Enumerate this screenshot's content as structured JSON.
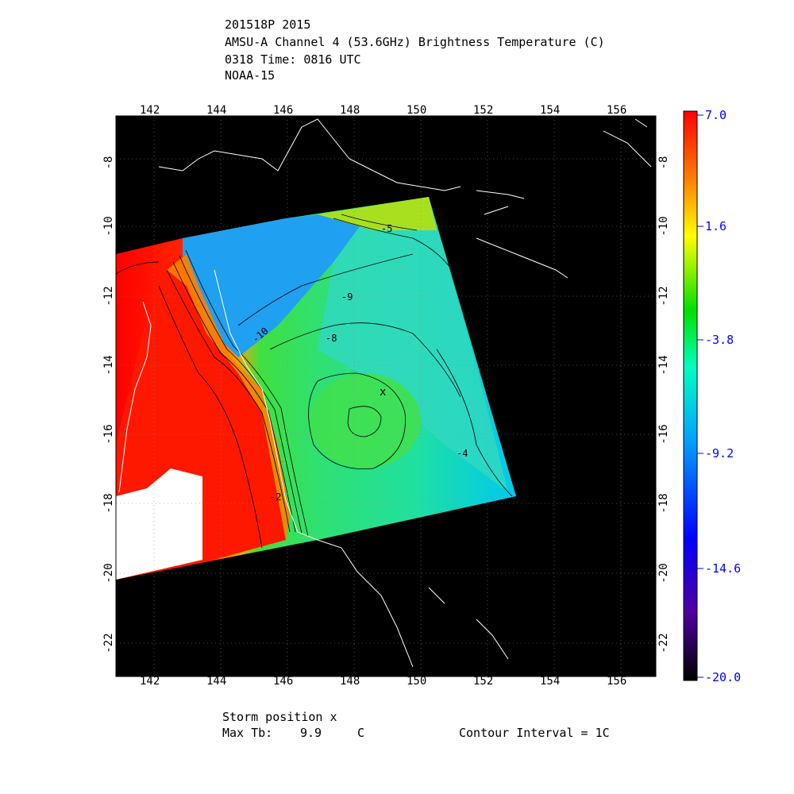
{
  "header": {
    "storm_id": "201518P 2015",
    "product": "AMSU-A Channel 4 (53.6GHz) Brightness Temperature (C)",
    "time": "0318 Time: 0816 UTC",
    "satellite": "NOAA-15"
  },
  "map": {
    "lon_ticks": [
      "142",
      "144",
      "146",
      "148",
      "150",
      "152",
      "154",
      "156"
    ],
    "lat_ticks": [
      "-8",
      "-10",
      "-12",
      "-14",
      "-16",
      "-18",
      "-20",
      "-22"
    ],
    "lon_range": [
      141,
      157
    ],
    "lat_range": [
      -7,
      -23
    ],
    "contour_labels": [
      "-9",
      "-8",
      "-10",
      "-4",
      "-2",
      "-5"
    ],
    "storm_marker": "x",
    "storm_lon": 148.9,
    "storm_lat": -15.2
  },
  "colorbar": {
    "labels": [
      "7.0",
      "1.6",
      "-3.8",
      "-9.2",
      "-14.6",
      "-20.0"
    ],
    "min": -20.0,
    "max": 7.0,
    "colors": [
      "#000000",
      "#5000a0",
      "#0000ff",
      "#00a0ff",
      "#00ffc0",
      "#00e000",
      "#ffff00",
      "#ff8000",
      "#ff0000"
    ]
  },
  "footer": {
    "storm_position": "Storm position x",
    "max_tb_label": "Max Tb:",
    "max_tb_value": "9.9",
    "max_tb_unit": "C",
    "contour_interval": "Contour Interval = 1C"
  }
}
